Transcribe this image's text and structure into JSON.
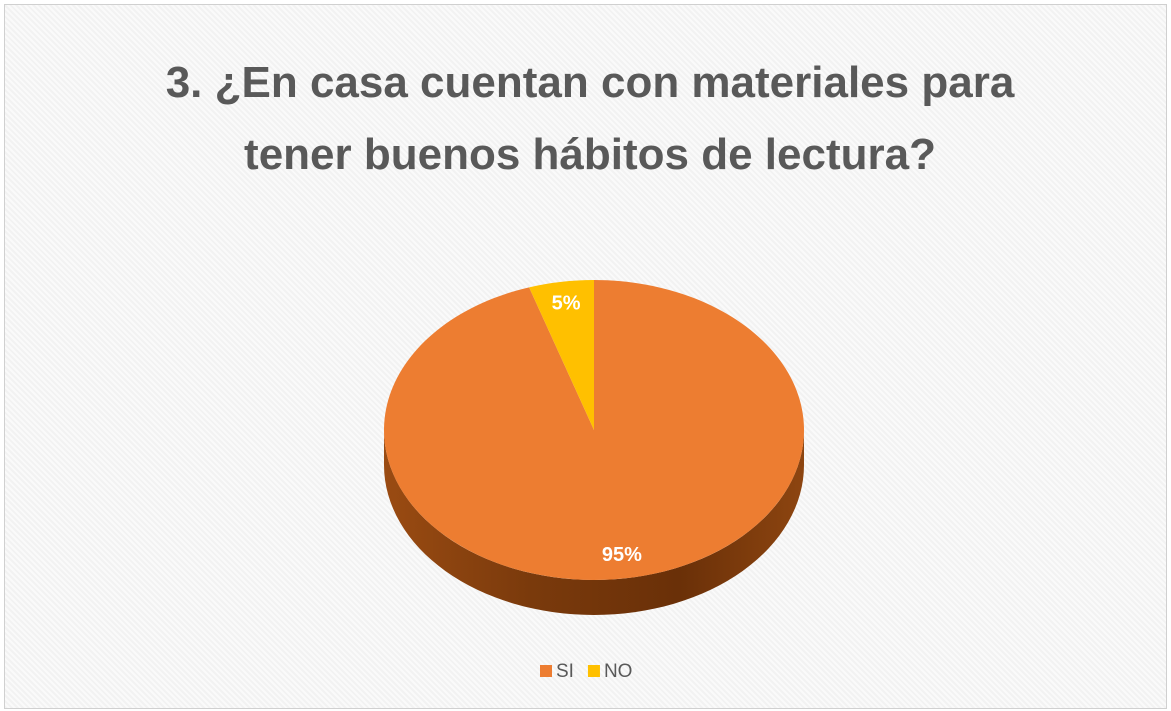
{
  "chart_data": {
    "type": "pie",
    "title": "3. ¿En casa cuentan con materiales para  tener buenos hábitos de lectura?",
    "categories": [
      "SI",
      "NO"
    ],
    "values": [
      95,
      5
    ],
    "value_labels": [
      "95%",
      "5%"
    ],
    "colors": [
      "#ed7d31",
      "#ffc000"
    ],
    "legend": "bottom"
  }
}
